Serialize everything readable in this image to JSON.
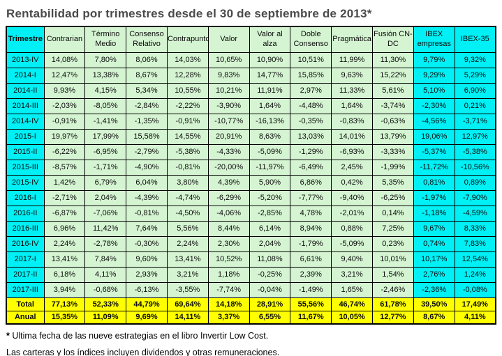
{
  "title": "Rentabilidad por trimestres desde el 30 de septiembre de 2013*",
  "colors": {
    "header_green": "#d5f5d2",
    "highlight_cyan": "#00f0f5",
    "summary_yellow": "#ffff00",
    "title_gray": "#4a4a4a",
    "border_black": "#000000"
  },
  "table": {
    "columns": [
      "Trimestre",
      "Contrarian",
      "Término Medio",
      "Consenso Relativo",
      "Contrapunto",
      "Valor",
      "Valor al alza",
      "Doble Consenso",
      "Pragmática",
      "Fusión CN-DC",
      "IBEX empresas",
      "IBEX-35"
    ],
    "cyan_column_indices": [
      0,
      10,
      11
    ],
    "rows": [
      {
        "label": "2013-IV",
        "values": [
          "14,08%",
          "7,80%",
          "8,06%",
          "14,03%",
          "10,65%",
          "10,90%",
          "10,51%",
          "11,99%",
          "11,30%",
          "9,79%",
          "9,32%"
        ]
      },
      {
        "label": "2014-I",
        "values": [
          "12,47%",
          "13,38%",
          "8,67%",
          "12,28%",
          "9,83%",
          "14,77%",
          "15,85%",
          "9,63%",
          "15,22%",
          "9,29%",
          "5,29%"
        ]
      },
      {
        "label": "2014-II",
        "values": [
          "9,93%",
          "4,15%",
          "5,34%",
          "10,55%",
          "10,21%",
          "11,91%",
          "2,97%",
          "11,33%",
          "5,61%",
          "5,10%",
          "6,90%"
        ]
      },
      {
        "label": "2014-III",
        "values": [
          "-2,03%",
          "-8,05%",
          "-2,84%",
          "-2,22%",
          "-3,90%",
          "1,64%",
          "-4,48%",
          "1,64%",
          "-3,74%",
          "-2,30%",
          "0,21%"
        ]
      },
      {
        "label": "2014-IV",
        "values": [
          "-0,91%",
          "-1,41%",
          "-1,35%",
          "-0,91%",
          "-10,77%",
          "-16,13%",
          "-0,35%",
          "-0,83%",
          "-0,63%",
          "-4,56%",
          "-3,71%"
        ]
      },
      {
        "label": "2015-I",
        "values": [
          "19,97%",
          "17,99%",
          "15,58%",
          "14,55%",
          "20,91%",
          "8,63%",
          "13,03%",
          "14,01%",
          "13,79%",
          "19,06%",
          "12,97%"
        ]
      },
      {
        "label": "2015-II",
        "values": [
          "-6,22%",
          "-6,95%",
          "-2,79%",
          "-5,38%",
          "-4,33%",
          "-5,09%",
          "-1,29%",
          "-6,93%",
          "-3,33%",
          "-5,37%",
          "-5,38%"
        ]
      },
      {
        "label": "2015-III",
        "values": [
          "-8,57%",
          "-1,71%",
          "-4,90%",
          "-0,81%",
          "-20,00%",
          "-11,97%",
          "-6,49%",
          "2,45%",
          "-1,99%",
          "-11,72%",
          "-10,56%"
        ]
      },
      {
        "label": "2015-IV",
        "values": [
          "1,42%",
          "6,79%",
          "6,04%",
          "3,80%",
          "4,39%",
          "5,90%",
          "6,86%",
          "0,42%",
          "5,35%",
          "0,81%",
          "0,89%"
        ]
      },
      {
        "label": "2016-I",
        "values": [
          "-2,71%",
          "2,04%",
          "-4,39%",
          "-4,74%",
          "-6,29%",
          "-5,20%",
          "-7,77%",
          "-9,40%",
          "-6,25%",
          "-1,97%",
          "-7,90%"
        ]
      },
      {
        "label": "2016-II",
        "values": [
          "-6,87%",
          "-7,06%",
          "-0,81%",
          "-4,50%",
          "-4,06%",
          "-2,85%",
          "4,78%",
          "-2,01%",
          "0,14%",
          "-1,18%",
          "-4,59%"
        ]
      },
      {
        "label": "2016-III",
        "values": [
          "6,96%",
          "11,42%",
          "7,64%",
          "5,56%",
          "8,44%",
          "6,14%",
          "8,94%",
          "0,88%",
          "7,25%",
          "9,67%",
          "8,33%"
        ]
      },
      {
        "label": "2016-IV",
        "values": [
          "2,24%",
          "-2,78%",
          "-0,30%",
          "2,24%",
          "2,30%",
          "2,04%",
          "-1,79%",
          "-5,09%",
          "0,23%",
          "0,74%",
          "7,83%"
        ]
      },
      {
        "label": "2017-I",
        "values": [
          "13,41%",
          "7,84%",
          "9,60%",
          "13,41%",
          "10,52%",
          "11,08%",
          "6,61%",
          "9,40%",
          "10,01%",
          "10,17%",
          "12,54%"
        ]
      },
      {
        "label": "2017-II",
        "values": [
          "6,18%",
          "4,11%",
          "2,93%",
          "3,21%",
          "1,18%",
          "-0,25%",
          "2,39%",
          "3,21%",
          "1,54%",
          "2,76%",
          "1,24%"
        ]
      },
      {
        "label": "2017-III",
        "values": [
          "3,94%",
          "-0,68%",
          "-6,13%",
          "-3,55%",
          "-7,74%",
          "-0,04%",
          "-1,49%",
          "1,65%",
          "-2,46%",
          "-2,36%",
          "-0,08%"
        ]
      }
    ],
    "summary_rows": [
      {
        "label": "Total",
        "values": [
          "77,13%",
          "52,33%",
          "44,79%",
          "69,64%",
          "14,18%",
          "28,91%",
          "55,56%",
          "46,74%",
          "61,78%",
          "39,50%",
          "17,49%"
        ]
      },
      {
        "label": "Anual",
        "values": [
          "15,35%",
          "11,09%",
          "9,69%",
          "14,11%",
          "3,37%",
          "6,55%",
          "11,67%",
          "10,05%",
          "12,77%",
          "8,67%",
          "4,11%"
        ]
      }
    ]
  },
  "footnotes": [
    {
      "marker": "*",
      "text": "Ultima fecha de las nueve estrategias en el libro Invertir Low Cost."
    },
    {
      "marker": "",
      "text": "Las carteras y los índices incluyen dividendos y otras remuneraciones."
    }
  ]
}
